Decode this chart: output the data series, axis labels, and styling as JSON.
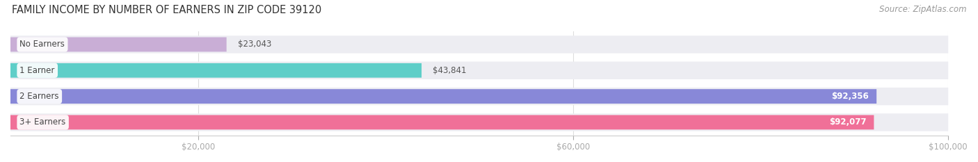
{
  "title": "FAMILY INCOME BY NUMBER OF EARNERS IN ZIP CODE 39120",
  "source": "Source: ZipAtlas.com",
  "categories": [
    "No Earners",
    "1 Earner",
    "2 Earners",
    "3+ Earners"
  ],
  "values": [
    23043,
    43841,
    92356,
    92077
  ],
  "bar_colors": [
    "#c9aed6",
    "#5ecec8",
    "#8888d8",
    "#f07098"
  ],
  "bar_bg_color": "#ededf2",
  "value_labels": [
    "$23,043",
    "$43,841",
    "$92,356",
    "$92,077"
  ],
  "xlim": [
    0,
    100000
  ],
  "xticks": [
    20000,
    60000,
    100000
  ],
  "xtick_labels": [
    "$20,000",
    "$60,000",
    "$100,000"
  ],
  "title_fontsize": 10.5,
  "source_fontsize": 8.5,
  "label_fontsize": 8.5,
  "value_fontsize": 8.5,
  "background_color": "#ffffff",
  "label_pill_color": "#ffffff",
  "outside_value_threshold": 60000
}
